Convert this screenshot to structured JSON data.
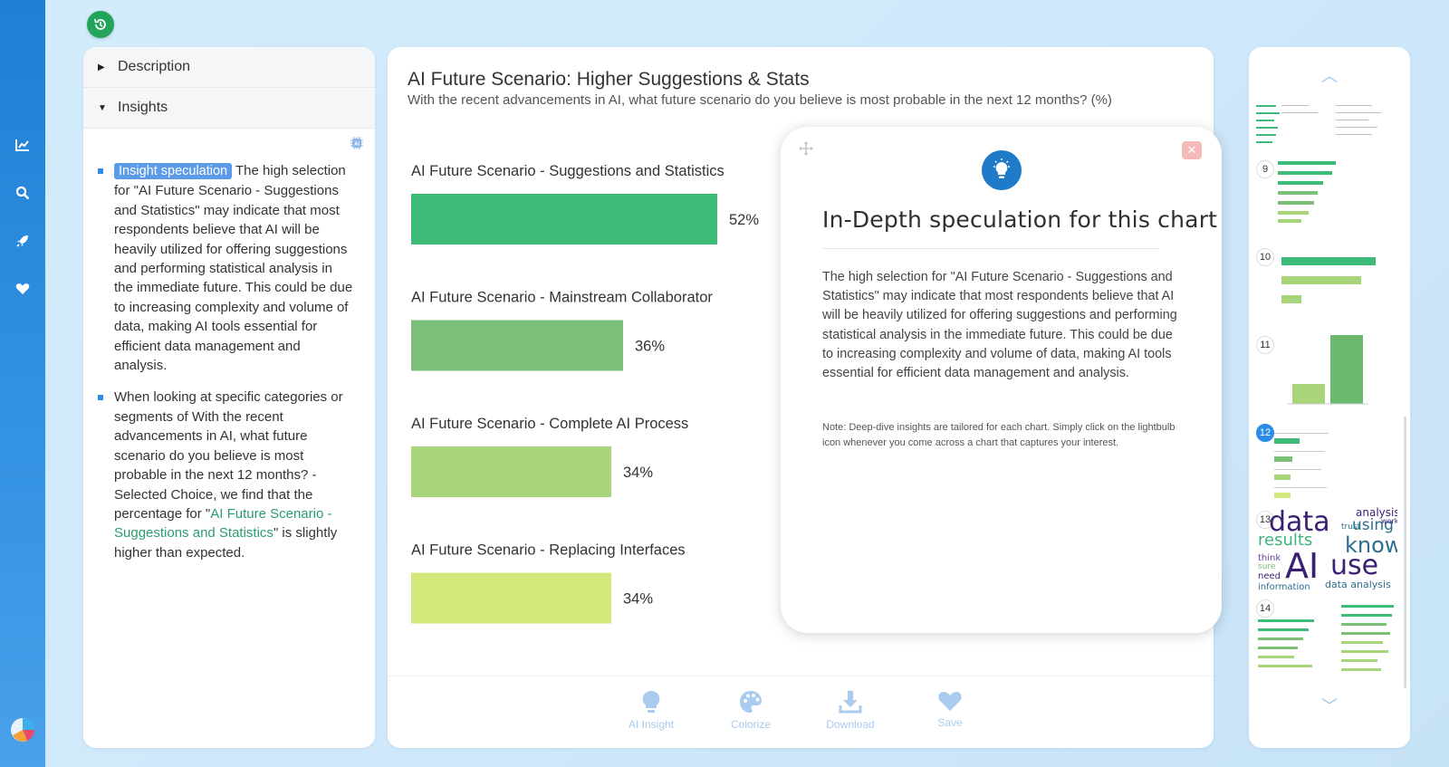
{
  "nav": {
    "icons": [
      "chart-line-icon",
      "search-icon",
      "rocket-icon",
      "heart-icon"
    ]
  },
  "left_panel": {
    "description_label": "Description",
    "insights_label": "Insights",
    "insight1_tag": "Insight speculation",
    "insight1_text": " The high selection for \"AI Future Scenario - Suggestions and Statistics\" may indicate that most respondents believe that AI will be heavily utilized for offering suggestions and performing statistical analysis in the immediate future. This could be due to increasing complexity and volume of data, making AI tools essential for efficient data management and analysis.",
    "insight2_pre": "When looking at specific categories or segments of With the recent advancements in AI, what future scenario do you believe is most probable in the next 12 months? - Selected Choice, we find that the percentage for \"",
    "insight2_link": "AI Future Scenario - Suggestions and Statistics",
    "insight2_post": "\" is slightly higher than expected."
  },
  "main": {
    "title": "AI Future Scenario: Higher Suggestions & Stats",
    "subtitle": "With the recent advancements in AI, what future scenario do you believe is most probable in the next 12 months? (%)",
    "toolbar": {
      "insight": "AI Insight",
      "colorize": "Colorize",
      "download": "Download",
      "save": "Save"
    }
  },
  "chart_data": {
    "type": "bar",
    "orientation": "horizontal",
    "categories": [
      "AI Future Scenario - Suggestions and Statistics",
      "AI Future Scenario - Mainstream Collaborator",
      "AI Future Scenario - Complete AI Process",
      "AI Future Scenario - Replacing Interfaces"
    ],
    "values": [
      52,
      36,
      34,
      34
    ],
    "value_labels": [
      "52%",
      "36%",
      "34%",
      "34%"
    ],
    "colors": [
      "#3dbb78",
      "#7cbf78",
      "#a8d47a",
      "#d3e87a"
    ],
    "xlim": [
      0,
      100
    ]
  },
  "popup": {
    "title": "In-Depth speculation for this chart",
    "body": "The high selection for \"AI Future Scenario - Suggestions and Statistics\" may indicate that most respondents believe that AI will be heavily utilized for offering suggestions and performing statistical analysis in the immediate future. This could be due to increasing complexity and volume of data, making AI tools essential for efficient data management and analysis.",
    "note": "Note: Deep-dive insights are tailored for each chart. Simply click on the lightbulb icon whenever you come across a chart that captures your interest.",
    "close": "✕"
  },
  "thumbnails": {
    "numbers": [
      "9",
      "10",
      "11",
      "12",
      "13",
      "14"
    ],
    "active": "12",
    "wordcloud": [
      "data",
      "AI",
      "use",
      "know",
      "results",
      "using",
      "analysis",
      "data analysis",
      "information",
      "think",
      "need",
      "trust",
      "work",
      "sure"
    ]
  }
}
